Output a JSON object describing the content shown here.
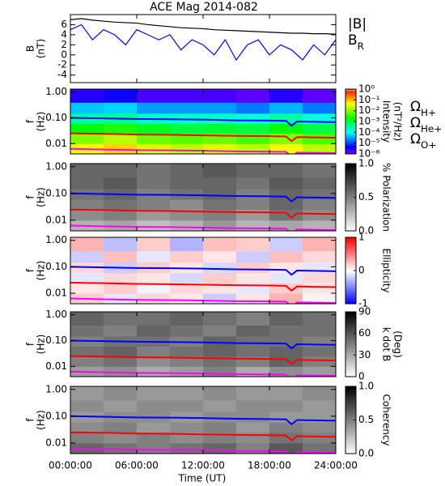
{
  "title": "ACE Mag 2014-082",
  "x_axis": {
    "xlim": [
      0,
      24
    ],
    "label": "Time (UT)",
    "xticks": [
      {
        "value": 0,
        "label": "00:00:00"
      },
      {
        "value": 6,
        "label": "06:00:00"
      },
      {
        "value": 12,
        "label": "12:00:00"
      },
      {
        "value": 18,
        "label": "18:00:00"
      },
      {
        "value": 24,
        "label": "24:00:00"
      }
    ]
  },
  "overlay": {
    "x": [
      0,
      3,
      6,
      9,
      12,
      15,
      18,
      19.5,
      20,
      20.5,
      22,
      24
    ],
    "subscript_from": 1,
    "series": [
      {
        "name": "ΩH+",
        "color": "#0000ff",
        "values": [
          0.1,
          0.095,
          0.09,
          0.088,
          0.085,
          0.08,
          0.078,
          0.076,
          0.05,
          0.072,
          0.07,
          0.068
        ]
      },
      {
        "name": "ΩHe+",
        "color": "#ff0000",
        "values": [
          0.025,
          0.024,
          0.0225,
          0.022,
          0.021,
          0.02,
          0.0195,
          0.019,
          0.0125,
          0.018,
          0.0175,
          0.017
        ]
      },
      {
        "name": "ΩO+",
        "color": "#ff00ff",
        "values": [
          0.0063,
          0.0059,
          0.0056,
          0.0055,
          0.0053,
          0.005,
          0.0049,
          0.0048,
          0.0031,
          0.0045,
          0.0044,
          0.0043
        ]
      }
    ]
  },
  "chart_data": [
    {
      "type": "line",
      "ylabel": [
        "B",
        "(nT)"
      ],
      "ylim": [
        -5.5,
        8
      ],
      "yticks": [
        -4,
        -2,
        0,
        2,
        4,
        6
      ],
      "x": [
        0,
        1,
        2,
        3,
        4,
        5,
        6,
        7,
        8,
        9,
        10,
        11,
        12,
        13,
        14,
        15,
        16,
        17,
        18,
        19,
        20,
        21,
        22,
        23,
        24
      ],
      "series": [
        {
          "name": "|B|",
          "color": "#000000",
          "subscript_from": null,
          "values": [
            7,
            7.2,
            6.9,
            6.7,
            6.5,
            6.4,
            6.3,
            6.0,
            5.8,
            5.6,
            5.4,
            5.3,
            5.2,
            5.0,
            4.9,
            4.8,
            4.7,
            4.6,
            4.5,
            4.4,
            4.3,
            4.3,
            4.2,
            4.2,
            4.1
          ]
        },
        {
          "name": "BR",
          "color": "#0000ff",
          "subscript_from": 1,
          "values": [
            5,
            6,
            3,
            5,
            4,
            2,
            5,
            4,
            3,
            4,
            1,
            3,
            2,
            0,
            3,
            -1,
            2,
            3,
            0,
            2,
            1,
            -1,
            2,
            0,
            3
          ]
        }
      ]
    },
    {
      "type": "heatmap",
      "ylabel": [
        "f",
        "(Hz)"
      ],
      "ylim": [
        0.004,
        1.3
      ],
      "log_y": true,
      "yticks": [
        {
          "value": 0.01,
          "label": "0.01"
        },
        {
          "value": 0.1,
          "label": "0.10"
        },
        {
          "value": 1,
          "label": "1.00"
        }
      ],
      "x_bins": [
        0,
        3,
        6,
        9,
        12,
        15,
        18,
        21,
        24
      ],
      "y_bins": [
        0.004,
        0.01,
        0.025,
        0.06,
        0.15,
        0.4,
        1.3
      ],
      "z": [
        [
          0.05,
          0.08,
          0.03,
          0.02,
          0.03,
          0.02,
          0.04,
          0.02
        ],
        [
          0.01,
          0.02,
          0.008,
          0.006,
          0.008,
          0.005,
          0.01,
          0.005
        ],
        [
          0.002,
          0.003,
          0.0015,
          0.001,
          0.0012,
          0.001,
          0.002,
          0.001
        ],
        [
          0.0003,
          0.0004,
          0.0002,
          0.0002,
          0.0002,
          0.00015,
          0.0003,
          0.00015
        ],
        [
          5e-05,
          6e-05,
          3e-05,
          3e-05,
          3e-05,
          2e-05,
          4e-05,
          2e-05
        ],
        [
          3e-06,
          4e-06,
          2e-06,
          2e-06,
          2e-06,
          1.5e-06,
          3e-06,
          1.5e-06
        ]
      ],
      "zlim": [
        1e-06,
        1
      ],
      "log_z": true,
      "colormap": "rainbow",
      "zticks": [
        {
          "value": 1,
          "label": "10⁰"
        },
        {
          "value": 0.1,
          "label": "10⁻¹"
        },
        {
          "value": 0.01,
          "label": "10⁻²"
        },
        {
          "value": 0.001,
          "label": "10⁻³"
        },
        {
          "value": 0.0001,
          "label": "10⁻⁴"
        },
        {
          "value": 1e-05,
          "label": "10⁻⁵"
        },
        {
          "value": 1e-06,
          "label": "10⁻⁶"
        }
      ],
      "colorbar_label": [
        "Intensity",
        "(nT²/Hz)"
      ],
      "overlay_legend": true
    },
    {
      "type": "heatmap",
      "ylabel": [
        "f",
        "(Hz)"
      ],
      "ylim": [
        0.004,
        1.3
      ],
      "log_y": true,
      "yticks": [
        {
          "value": 0.01,
          "label": "0.01"
        },
        {
          "value": 0.1,
          "label": "0.10"
        },
        {
          "value": 1,
          "label": "1.00"
        }
      ],
      "x_bins": [
        0,
        3,
        6,
        9,
        12,
        15,
        18,
        21,
        24
      ],
      "y_bins": [
        0.004,
        0.01,
        0.025,
        0.06,
        0.15,
        0.4,
        1.3
      ],
      "z": [
        [
          0.3,
          0.35,
          0.25,
          0.3,
          0.4,
          0.3,
          0.35,
          0.3
        ],
        [
          0.45,
          0.5,
          0.4,
          0.45,
          0.5,
          0.4,
          0.55,
          0.45
        ],
        [
          0.5,
          0.55,
          0.5,
          0.45,
          0.55,
          0.5,
          0.6,
          0.5
        ],
        [
          0.55,
          0.6,
          0.5,
          0.55,
          0.6,
          0.5,
          0.6,
          0.55
        ],
        [
          0.6,
          0.65,
          0.55,
          0.6,
          0.6,
          0.55,
          0.65,
          0.6
        ],
        [
          0.6,
          0.6,
          0.55,
          0.6,
          0.65,
          0.6,
          0.6,
          0.55
        ]
      ],
      "zlim": [
        0,
        1
      ],
      "log_z": false,
      "colormap": "gray",
      "zticks": [
        {
          "value": 0,
          "label": "0.0"
        },
        {
          "value": 0.5,
          "label": "0.5"
        },
        {
          "value": 1,
          "label": "1.0"
        }
      ],
      "colorbar_label": [
        "% Polarization"
      ],
      "overlay_legend": false
    },
    {
      "type": "heatmap",
      "ylabel": [
        "f",
        "(Hz)"
      ],
      "ylim": [
        0.004,
        1.3
      ],
      "log_y": true,
      "yticks": [
        {
          "value": 0.01,
          "label": "0.01"
        },
        {
          "value": 0.1,
          "label": "0.10"
        },
        {
          "value": 1,
          "label": "1.00"
        }
      ],
      "x_bins": [
        0,
        3,
        6,
        9,
        12,
        15,
        18,
        21,
        24
      ],
      "y_bins": [
        0.004,
        0.01,
        0.025,
        0.06,
        0.15,
        0.4,
        1.3
      ],
      "z": [
        [
          0.2,
          -0.1,
          0.15,
          0.1,
          -0.2,
          0.1,
          0.3,
          0.05
        ],
        [
          0.1,
          0.2,
          -0.05,
          0.15,
          0.1,
          -0.1,
          0.2,
          0.1
        ],
        [
          -0.1,
          0.15,
          0.1,
          -0.15,
          0.2,
          0.1,
          -0.1,
          0.15
        ],
        [
          0.15,
          -0.2,
          0.2,
          0.1,
          -0.15,
          0.2,
          0.1,
          -0.1
        ],
        [
          -0.2,
          0.25,
          -0.1,
          0.2,
          0.1,
          -0.2,
          0.25,
          0.15
        ],
        [
          0.3,
          -0.25,
          0.2,
          -0.3,
          0.25,
          0.2,
          -0.2,
          0.3
        ]
      ],
      "zlim": [
        -1,
        1
      ],
      "log_z": false,
      "colormap": "bwr",
      "zticks": [
        -1,
        0,
        1
      ],
      "colorbar_label": [
        "Ellipticity"
      ],
      "overlay_legend": false
    },
    {
      "type": "heatmap",
      "ylabel": [
        "f",
        "(Hz)"
      ],
      "ylim": [
        0.004,
        1.3
      ],
      "log_y": true,
      "yticks": [
        {
          "value": 0.01,
          "label": "0.01"
        },
        {
          "value": 0.1,
          "label": "0.10"
        },
        {
          "value": 1,
          "label": "1.00"
        }
      ],
      "x_bins": [
        0,
        3,
        6,
        9,
        12,
        15,
        18,
        21,
        24
      ],
      "y_bins": [
        0.004,
        0.01,
        0.025,
        0.06,
        0.15,
        0.4,
        1.3
      ],
      "z": [
        [
          35,
          40,
          30,
          35,
          45,
          30,
          40,
          35
        ],
        [
          45,
          50,
          40,
          45,
          50,
          45,
          55,
          45
        ],
        [
          50,
          55,
          45,
          50,
          55,
          50,
          55,
          50
        ],
        [
          45,
          50,
          50,
          45,
          55,
          50,
          50,
          45
        ],
        [
          50,
          45,
          55,
          50,
          45,
          55,
          50,
          50
        ],
        [
          55,
          50,
          50,
          55,
          50,
          45,
          55,
          50
        ]
      ],
      "zlim": [
        0,
        90
      ],
      "log_z": false,
      "colormap": "gray",
      "zticks": [
        0,
        30,
        60,
        90
      ],
      "colorbar_label": [
        "k dot B",
        "(Deg)"
      ],
      "overlay_legend": false
    },
    {
      "type": "heatmap",
      "ylabel": [
        "f",
        "(Hz)"
      ],
      "ylim": [
        0.004,
        1.3
      ],
      "log_y": true,
      "yticks": [
        {
          "value": 0.01,
          "label": "0.01"
        },
        {
          "value": 0.1,
          "label": "0.10"
        },
        {
          "value": 1,
          "label": "1.00"
        }
      ],
      "x_bins": [
        0,
        3,
        6,
        9,
        12,
        15,
        18,
        21,
        24
      ],
      "y_bins": [
        0.004,
        0.01,
        0.025,
        0.06,
        0.15,
        0.4,
        1.3
      ],
      "z": [
        [
          0.6,
          0.55,
          0.5,
          0.55,
          0.6,
          0.5,
          0.65,
          0.55
        ],
        [
          0.5,
          0.45,
          0.5,
          0.45,
          0.5,
          0.45,
          0.55,
          0.5
        ],
        [
          0.45,
          0.5,
          0.4,
          0.45,
          0.5,
          0.4,
          0.5,
          0.45
        ],
        [
          0.4,
          0.45,
          0.45,
          0.4,
          0.45,
          0.45,
          0.4,
          0.4
        ],
        [
          0.45,
          0.4,
          0.45,
          0.45,
          0.4,
          0.45,
          0.45,
          0.4
        ],
        [
          0.4,
          0.45,
          0.4,
          0.4,
          0.45,
          0.4,
          0.4,
          0.45
        ]
      ],
      "zlim": [
        0,
        1
      ],
      "log_z": false,
      "colormap": "gray",
      "zticks": [
        {
          "value": 0,
          "label": "0.0"
        },
        {
          "value": 0.5,
          "label": "0.5"
        },
        {
          "value": 1,
          "label": "1.0"
        }
      ],
      "colorbar_label": [
        "Coherency"
      ],
      "overlay_legend": false
    }
  ]
}
